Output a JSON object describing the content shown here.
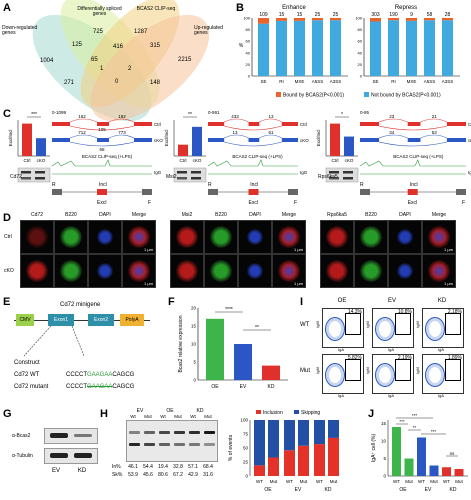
{
  "panels": {
    "A": "A",
    "B": "B",
    "C": "C",
    "D": "D",
    "E": "E",
    "F": "F",
    "G": "G",
    "H": "H",
    "I": "I",
    "J": "J"
  },
  "venn": {
    "labels": [
      "Down-regulated genes",
      "Differentially spliced genes",
      "BCAS2 CLIP-seq",
      "Up-regulated genes"
    ],
    "numbers": [
      "725",
      "1287",
      "125",
      "416",
      "315",
      "1004",
      "65",
      "2215",
      "1",
      "2",
      "271",
      "0",
      "148"
    ]
  },
  "panel_b": {
    "legend": [
      "Bound by BCAS2(P<0.001)",
      "Not bound by BCAS2(P<0.001)"
    ],
    "colors": {
      "bound": "#e8642a",
      "not_bound": "#3fa9e0"
    },
    "charts": [
      {
        "title": "Enhance",
        "categories": [
          "SE",
          "RI",
          "MXE",
          "A5SS",
          "A3SS"
        ],
        "totals": [
          "109",
          "15",
          "15",
          "25",
          "25"
        ],
        "bound_frac": [
          0.1,
          0.05,
          0.05,
          0.04,
          0.04
        ]
      },
      {
        "title": "Repress",
        "categories": [
          "SE",
          "RI",
          "MXE",
          "A5SS",
          "A3SS"
        ],
        "totals": [
          "303",
          "190",
          "9",
          "58",
          "28"
        ],
        "bound_frac": [
          0.06,
          0.04,
          0.05,
          0.04,
          0.04
        ]
      }
    ],
    "ytick": [
      "0",
      "20",
      "40",
      "60",
      "80",
      "100"
    ],
    "ylabel": "%"
  },
  "panel_c": {
    "genes": [
      "Cd72",
      "Msi2",
      "Rps6ka5"
    ],
    "groups": [
      "Ctrl",
      "cKO"
    ],
    "ylabel": "Excl/Incl",
    "sig": [
      "***",
      "**",
      "*"
    ],
    "ranges": [
      "0-1099",
      "0-591",
      "0-85"
    ],
    "junctions": [
      {
        "ctrl": [
          "162",
          "192"
        ],
        "cko": [
          "712",
          "773"
        ],
        "excl": "105",
        "cko_excl": "68"
      },
      {
        "ctrl": [
          "433",
          "13"
        ],
        "cko": [
          "13",
          "61"
        ],
        "excl": "",
        "cko_excl": ""
      },
      {
        "ctrl": [
          "23",
          "21"
        ],
        "cko": [
          "34",
          "53"
        ],
        "excl": "",
        "cko_excl": ""
      }
    ],
    "tracks": [
      "Ctrl",
      "cKO",
      "BCAS2 CLIP-seq (+LPS)",
      "IgG"
    ],
    "rt_labels": [
      "R",
      "F",
      "Incl",
      "Excl"
    ],
    "bars": [
      [
        1.0,
        0.55
      ],
      [
        0.35,
        0.9
      ],
      [
        1.0,
        0.6
      ]
    ]
  },
  "panel_d": {
    "headers": [
      "Cd72",
      "B220",
      "DAPI",
      "Merge",
      "Msi2",
      "B220",
      "DAPI",
      "Merge",
      "Rps6ka5",
      "B220",
      "DAPI",
      "Merge"
    ],
    "rows": [
      "Ctrl",
      "cKO"
    ],
    "scale": "1 μm"
  },
  "panel_e": {
    "title": "Cd72 minigene",
    "parts": [
      "CMV",
      "Exon1",
      "Exon2",
      "PolyA"
    ],
    "construct_label": "Construct",
    "wt_label": "Cd72 WT",
    "mut_label": "Cd72 mutant",
    "wt_seq": [
      "CCCCT",
      "GAAGAA",
      "CAGCG"
    ],
    "mut_seq": [
      "CCCCT",
      "GAAGAA",
      "CAGCG"
    ]
  },
  "panel_f": {
    "ylabel": "Bcas2 relative expression",
    "categories": [
      "OE",
      "EV",
      "KD"
    ],
    "values": [
      17,
      10,
      4
    ],
    "ylim": [
      0,
      20
    ],
    "ticks": [
      "0",
      "5",
      "10",
      "15",
      "20"
    ],
    "sig": [
      "****",
      "**"
    ],
    "colors": [
      "#3db54a",
      "#2a57c4",
      "#e0302c"
    ]
  },
  "panel_g": {
    "rows": [
      "α-Bcas2",
      "α-Tubulin"
    ],
    "cols": [
      "EV",
      "KD"
    ]
  },
  "panel_h": {
    "groups": [
      "EV",
      "OE",
      "KD"
    ],
    "lanes": [
      "Wt",
      "Mut",
      "Wt",
      "Mut",
      "Wt",
      "Mut"
    ],
    "in_label": "In%",
    "sk_label": "Sk%",
    "in_values": [
      "46.1",
      "54.4",
      "19.4",
      "32.8",
      "57.1",
      "68.4"
    ],
    "sk_values": [
      "53.9",
      "45.6",
      "80.6",
      "67.2",
      "42.9",
      "31.6"
    ],
    "legend": [
      "Inclusion",
      "Skipping"
    ],
    "colors": {
      "inclusion": "#e53229",
      "skipping": "#234fa5"
    },
    "ylabel": "% of events",
    "ticks": [
      "0",
      "25",
      "50",
      "75",
      "100"
    ],
    "xcats": [
      "WT",
      "Mut",
      "WT",
      "Mut",
      "WT",
      "Mut"
    ],
    "xgroups": [
      "OE",
      "EV",
      "KD"
    ],
    "inclusion_frac": [
      0.19,
      0.33,
      0.46,
      0.54,
      0.57,
      0.68
    ]
  },
  "panel_i": {
    "cols": [
      "OE",
      "EV",
      "KD"
    ],
    "rows": [
      "WT",
      "Mut"
    ],
    "percents": [
      [
        "14.3%",
        "10.8%",
        "2.18%"
      ],
      [
        "5.82%",
        "2.19%",
        "1.89%"
      ]
    ],
    "xlabel": "IgA",
    "ylabel": "IgM"
  },
  "panel_j": {
    "ylabel": "IgA⁺ cell (%)",
    "ticks": [
      "0",
      "5",
      "10",
      "15"
    ],
    "ylim": [
      0,
      16
    ],
    "xcats": [
      "WT",
      "Mut",
      "WT",
      "Mut",
      "WT",
      "Mut"
    ],
    "xgroups": [
      "OE",
      "EV",
      "KD"
    ],
    "values": [
      14,
      5,
      11,
      3,
      2.5,
      2
    ],
    "colors": [
      "#3db54a",
      "#3db54a",
      "#2a57c4",
      "#2a57c4",
      "#e0302c",
      "#e0302c"
    ],
    "sig": [
      "***",
      "**",
      "***",
      "***",
      "ns"
    ]
  }
}
